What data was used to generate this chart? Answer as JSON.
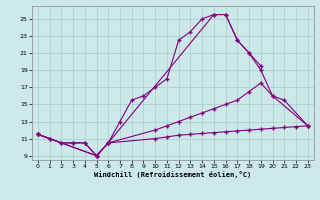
{
  "xlabel": "Windchill (Refroidissement éolien,°C)",
  "bg_color": "#cce8e8",
  "line_color": "#800080",
  "grid_color": "#aacccc",
  "xlim": [
    -0.5,
    23.5
  ],
  "ylim": [
    8.5,
    26.5
  ],
  "yticks": [
    9,
    11,
    13,
    15,
    17,
    19,
    21,
    23,
    25
  ],
  "xticks": [
    0,
    1,
    2,
    3,
    4,
    5,
    6,
    7,
    8,
    9,
    10,
    11,
    12,
    13,
    14,
    15,
    16,
    17,
    18,
    19,
    20,
    21,
    22,
    23
  ],
  "line1_x": [
    0,
    1,
    2,
    3,
    4,
    5,
    6,
    7,
    8,
    9,
    10,
    11,
    12,
    13,
    14,
    15,
    16,
    17,
    18,
    19
  ],
  "line1_y": [
    11.5,
    11.0,
    10.5,
    10.5,
    10.5,
    9.0,
    10.5,
    13.0,
    15.5,
    16.0,
    17.0,
    18.0,
    22.5,
    23.5,
    25.0,
    25.5,
    25.5,
    22.5,
    21.0,
    19.5
  ],
  "line2_x": [
    0,
    1,
    2,
    3,
    4,
    5,
    6,
    15,
    16,
    17,
    18,
    19,
    20,
    21,
    23
  ],
  "line2_y": [
    11.5,
    11.0,
    10.5,
    10.5,
    10.5,
    9.0,
    10.5,
    25.5,
    25.5,
    22.5,
    21.0,
    19.0,
    16.0,
    15.5,
    12.5
  ],
  "line3_x": [
    0,
    5,
    6,
    10,
    11,
    12,
    13,
    14,
    15,
    16,
    17,
    18,
    19,
    20,
    23
  ],
  "line3_y": [
    11.5,
    9.0,
    10.5,
    12.0,
    12.5,
    13.0,
    13.5,
    14.0,
    14.5,
    15.0,
    15.5,
    16.5,
    17.5,
    16.0,
    12.5
  ],
  "line4_x": [
    0,
    5,
    6,
    10,
    11,
    12,
    13,
    14,
    15,
    16,
    17,
    18,
    19,
    20,
    21,
    22,
    23
  ],
  "line4_y": [
    11.5,
    9.0,
    10.5,
    11.0,
    11.2,
    11.4,
    11.5,
    11.6,
    11.7,
    11.8,
    11.9,
    12.0,
    12.1,
    12.2,
    12.3,
    12.4,
    12.5
  ]
}
